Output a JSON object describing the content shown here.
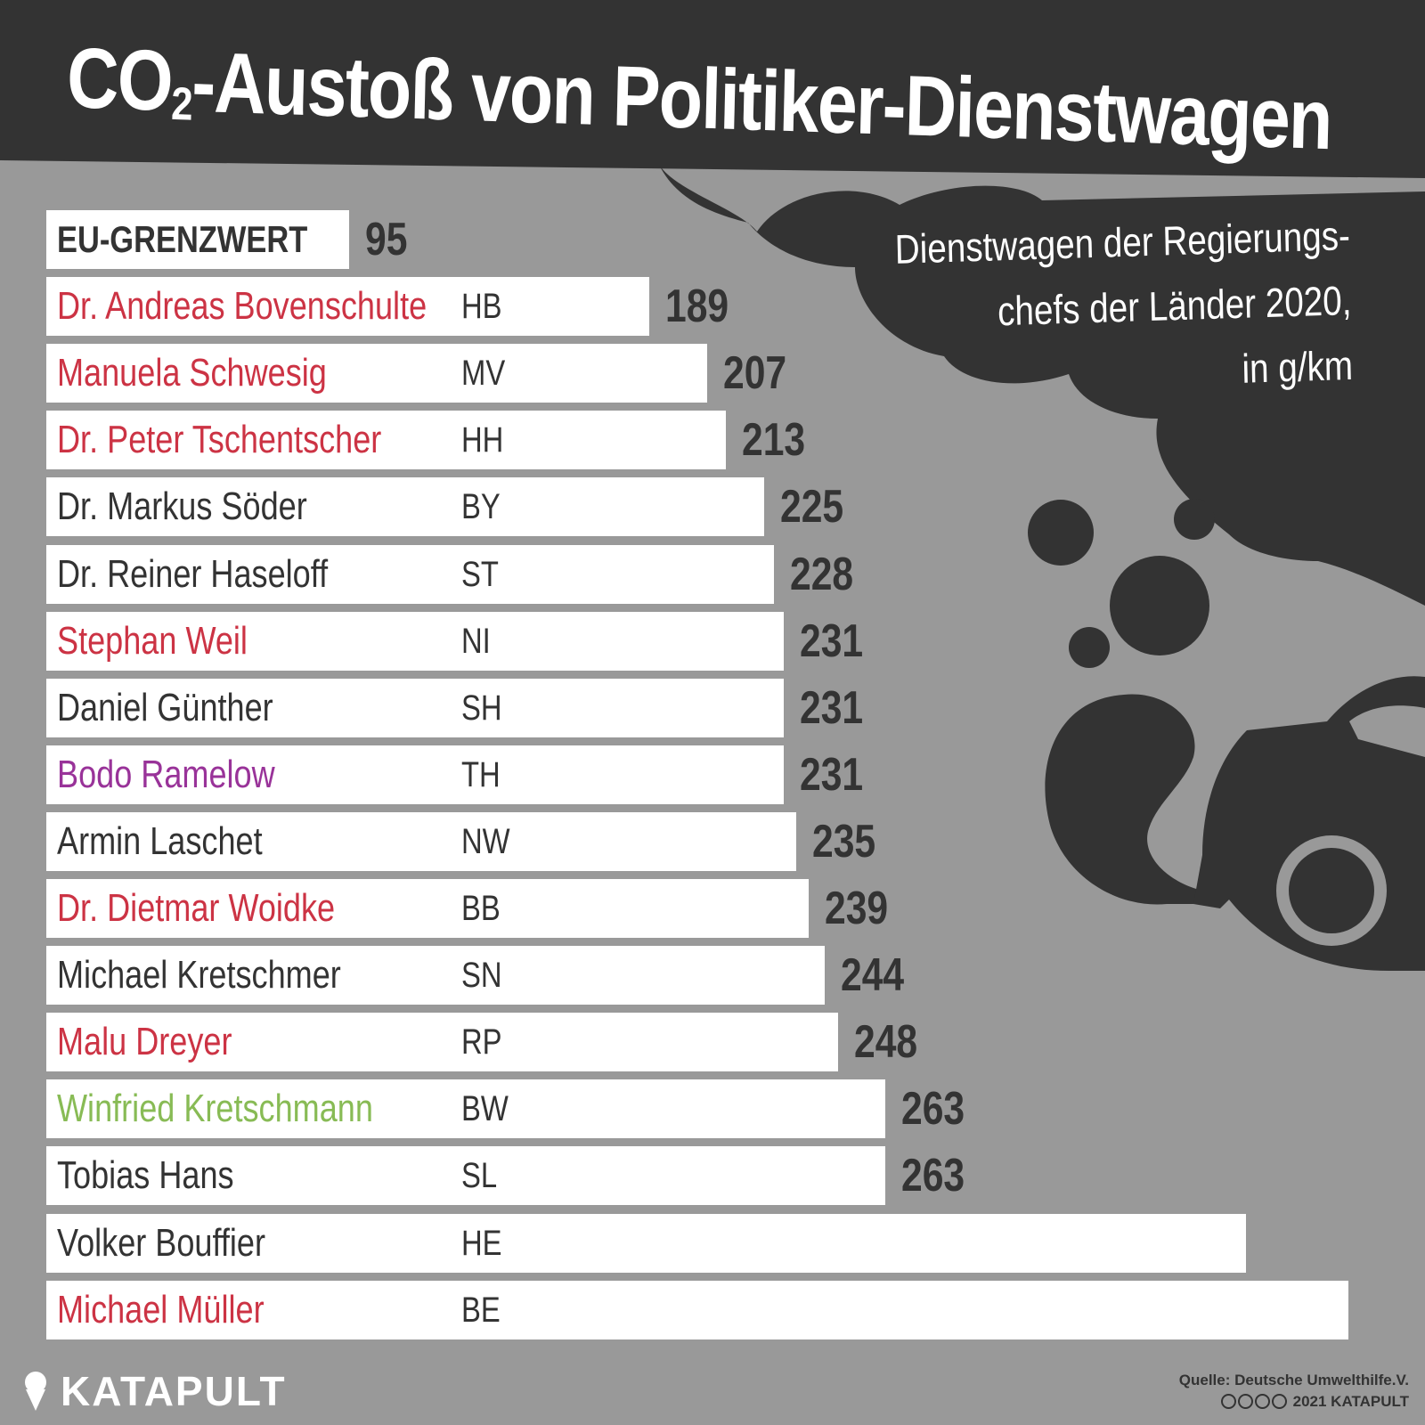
{
  "header": {
    "title_main": "CO",
    "title_sub": "2",
    "title_rest": "-Austoß von Politiker-Dienstwagen",
    "subtitle_lines": [
      "Dienstwagen der Regierungs-",
      "chefs der Länder 2020,",
      "in g/km"
    ]
  },
  "chart_data": {
    "type": "bar",
    "orientation": "horizontal",
    "unit": "g/km",
    "reference": {
      "label": "EU-GRENZWERT",
      "value": 95
    },
    "categories": [
      "Dr. Andreas Bovenschulte",
      "Manuela Schwesig",
      "Dr. Peter Tschentscher",
      "Dr. Markus Söder",
      "Dr. Reiner Haseloff",
      "Stephan Weil",
      "Daniel Günther",
      "Bodo Ramelow",
      "Armin Laschet",
      "Dr. Dietmar Woidke",
      "Michael Kretschmer",
      "Malu Dreyer",
      "Winfried Kretschmann",
      "Tobias Hans",
      "Volker Bouffier",
      "Michael Müller"
    ],
    "state_codes": [
      "HB",
      "MV",
      "HH",
      "BY",
      "ST",
      "NI",
      "SH",
      "TH",
      "NW",
      "BB",
      "SN",
      "RP",
      "BW",
      "SL",
      "HE",
      "BE"
    ],
    "values": [
      189,
      207,
      213,
      225,
      228,
      231,
      231,
      231,
      235,
      239,
      244,
      248,
      263,
      263,
      376,
      408
    ],
    "name_colors": [
      "#cc3344",
      "#cc3344",
      "#cc3344",
      "#333333",
      "#333333",
      "#cc3344",
      "#333333",
      "#993399",
      "#333333",
      "#cc3344",
      "#333333",
      "#cc3344",
      "#88bb55",
      "#333333",
      "#333333",
      "#cc3344"
    ]
  },
  "colors": {
    "background": "#999999",
    "dark": "#333333",
    "bar": "#ffffff"
  },
  "footer": {
    "brand": "KATAPULT",
    "source_line": "Quelle: Deutsche Umwelthilfe.V.",
    "copyright": "2021 KATAPULT"
  }
}
